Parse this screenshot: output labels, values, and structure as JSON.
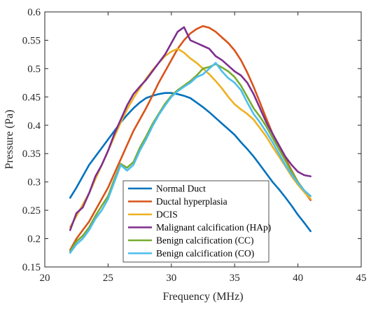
{
  "chart_data": {
    "type": "line",
    "xlabel": "Frequency (MHz)",
    "ylabel": "Pressure (Pa)",
    "xlim": [
      20,
      45
    ],
    "ylim": [
      0.15,
      0.6
    ],
    "xticks": [
      20,
      25,
      30,
      35,
      40,
      45
    ],
    "yticks": [
      0.15,
      0.2,
      0.25,
      0.3,
      0.35,
      0.4,
      0.45,
      0.5,
      0.55,
      0.6
    ],
    "grid": false,
    "legend_position": "bottom-center",
    "series": [
      {
        "name": "Normal Duct",
        "color": "#0072BD",
        "x": [
          22,
          22.5,
          23,
          23.5,
          24,
          24.5,
          25,
          25.5,
          26,
          26.5,
          27,
          27.5,
          28,
          28.5,
          29,
          29.5,
          30,
          30.5,
          31,
          31.5,
          32,
          32.5,
          33,
          33.5,
          34,
          34.5,
          35,
          35.5,
          36,
          36.5,
          37,
          37.5,
          38,
          38.5,
          39,
          39.5,
          40,
          40.5,
          41
        ],
        "y": [
          0.272,
          0.29,
          0.31,
          0.33,
          0.345,
          0.36,
          0.375,
          0.39,
          0.405,
          0.418,
          0.43,
          0.44,
          0.448,
          0.452,
          0.455,
          0.457,
          0.457,
          0.455,
          0.452,
          0.448,
          0.44,
          0.432,
          0.423,
          0.413,
          0.403,
          0.393,
          0.383,
          0.37,
          0.358,
          0.345,
          0.33,
          0.315,
          0.3,
          0.287,
          0.273,
          0.258,
          0.242,
          0.228,
          0.213
        ]
      },
      {
        "name": "Ductal hyperplasia",
        "color": "#D95319",
        "x": [
          22,
          22.5,
          23,
          23.5,
          24,
          24.5,
          25,
          25.5,
          26,
          26.5,
          27,
          27.5,
          28,
          28.5,
          29,
          29.5,
          30,
          30.5,
          31,
          31.5,
          32,
          32.5,
          33,
          33.5,
          34,
          34.5,
          35,
          35.5,
          36,
          36.5,
          37,
          37.5,
          38,
          38.5,
          39,
          39.5,
          40,
          40.5,
          41
        ],
        "y": [
          0.18,
          0.2,
          0.215,
          0.23,
          0.25,
          0.27,
          0.29,
          0.315,
          0.34,
          0.365,
          0.39,
          0.41,
          0.43,
          0.452,
          0.475,
          0.495,
          0.515,
          0.535,
          0.55,
          0.562,
          0.57,
          0.575,
          0.572,
          0.565,
          0.555,
          0.545,
          0.532,
          0.515,
          0.493,
          0.468,
          0.44,
          0.412,
          0.385,
          0.362,
          0.342,
          0.32,
          0.3,
          0.283,
          0.268
        ]
      },
      {
        "name": "DCIS",
        "color": "#EDB120",
        "x": [
          22,
          22.5,
          23,
          23.5,
          24,
          24.5,
          25,
          25.5,
          26,
          26.5,
          27,
          27.5,
          28,
          28.5,
          29,
          29.5,
          30,
          30.5,
          31,
          31.5,
          32,
          32.5,
          33,
          33.5,
          34,
          34.5,
          35,
          35.5,
          36,
          36.5,
          37,
          37.5,
          38,
          38.5,
          39,
          39.5,
          40,
          40.5,
          41
        ],
        "y": [
          0.22,
          0.24,
          0.26,
          0.28,
          0.305,
          0.33,
          0.355,
          0.38,
          0.405,
          0.428,
          0.448,
          0.465,
          0.482,
          0.497,
          0.51,
          0.522,
          0.53,
          0.535,
          0.528,
          0.518,
          0.51,
          0.5,
          0.49,
          0.478,
          0.465,
          0.45,
          0.437,
          0.428,
          0.42,
          0.41,
          0.395,
          0.38,
          0.362,
          0.345,
          0.328,
          0.31,
          0.295,
          0.282,
          0.27
        ]
      },
      {
        "name": "Malignant calcification (HAp)",
        "color": "#7E2F8E",
        "x": [
          22,
          22.5,
          23,
          23.5,
          24,
          24.5,
          25,
          25.5,
          26,
          26.5,
          27,
          27.5,
          28,
          28.5,
          29,
          29.5,
          30,
          30.5,
          31,
          31.5,
          32,
          32.5,
          33,
          33.5,
          34,
          34.5,
          35,
          35.5,
          36,
          36.5,
          37,
          37.5,
          38,
          38.5,
          39,
          39.5,
          40,
          40.5,
          41
        ],
        "y": [
          0.215,
          0.245,
          0.255,
          0.28,
          0.31,
          0.33,
          0.355,
          0.385,
          0.41,
          0.435,
          0.455,
          0.468,
          0.48,
          0.495,
          0.51,
          0.525,
          0.545,
          0.565,
          0.573,
          0.55,
          0.545,
          0.54,
          0.535,
          0.522,
          0.515,
          0.505,
          0.495,
          0.488,
          0.475,
          0.455,
          0.43,
          0.405,
          0.385,
          0.365,
          0.345,
          0.33,
          0.318,
          0.312,
          0.31
        ]
      },
      {
        "name": "Benign calcification (CC)",
        "color": "#77AC30",
        "x": [
          22,
          22.5,
          23,
          23.5,
          24,
          24.5,
          25,
          25.5,
          26,
          26.5,
          27,
          27.5,
          28,
          28.5,
          29,
          29.5,
          30,
          30.5,
          31,
          31.5,
          32,
          32.5,
          33,
          33.5,
          34,
          34.5,
          35,
          35.5,
          36,
          36.5,
          37,
          37.5,
          38,
          38.5,
          39,
          39.5,
          40,
          40.5,
          41
        ],
        "y": [
          0.178,
          0.195,
          0.205,
          0.22,
          0.24,
          0.258,
          0.275,
          0.305,
          0.332,
          0.325,
          0.335,
          0.36,
          0.38,
          0.402,
          0.42,
          0.438,
          0.452,
          0.462,
          0.47,
          0.478,
          0.488,
          0.5,
          0.503,
          0.508,
          0.502,
          0.495,
          0.485,
          0.47,
          0.45,
          0.43,
          0.415,
          0.398,
          0.378,
          0.358,
          0.338,
          0.318,
          0.3,
          0.285,
          0.275
        ]
      },
      {
        "name": "Benign calcification (CO)",
        "color": "#4DBEEE",
        "x": [
          22,
          22.5,
          23,
          23.5,
          24,
          24.5,
          25,
          25.5,
          26,
          26.5,
          27,
          27.5,
          28,
          28.5,
          29,
          29.5,
          30,
          30.5,
          31,
          31.5,
          32,
          32.5,
          33,
          33.5,
          34,
          34.5,
          35,
          35.5,
          36,
          36.5,
          37,
          37.5,
          38,
          38.5,
          39,
          39.5,
          40,
          40.5,
          41
        ],
        "y": [
          0.175,
          0.19,
          0.2,
          0.215,
          0.235,
          0.25,
          0.27,
          0.3,
          0.33,
          0.32,
          0.33,
          0.355,
          0.375,
          0.398,
          0.418,
          0.435,
          0.45,
          0.46,
          0.468,
          0.475,
          0.485,
          0.49,
          0.5,
          0.51,
          0.495,
          0.483,
          0.475,
          0.462,
          0.44,
          0.42,
          0.405,
          0.388,
          0.37,
          0.35,
          0.33,
          0.313,
          0.298,
          0.285,
          0.275
        ]
      }
    ]
  }
}
